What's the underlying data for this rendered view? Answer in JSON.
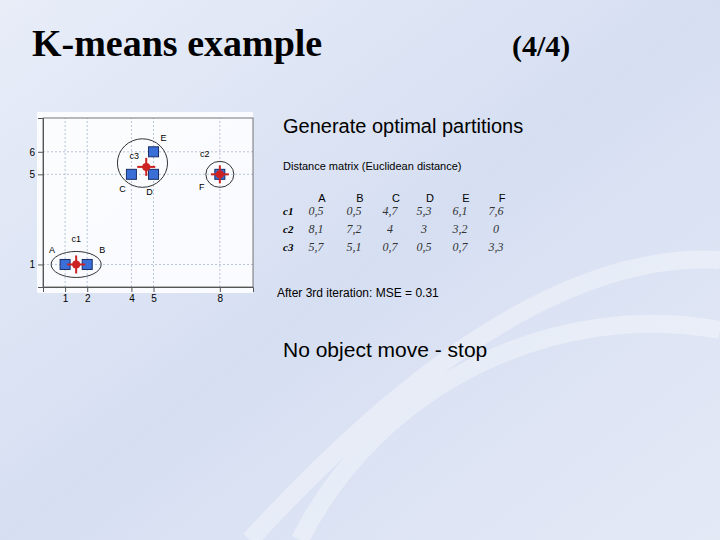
{
  "chart_data": {
    "type": "scatter",
    "series": [
      {
        "labels": [
          "A",
          "B",
          "C",
          "D",
          "E",
          "F"
        ],
        "x": [
          1,
          2,
          4,
          5,
          5,
          8
        ],
        "values": [
          1,
          1,
          5,
          5,
          6,
          5
        ],
        "color": "#3a6fd8",
        "marker": "square"
      },
      {
        "labels": [
          "c1",
          "c2",
          "c3"
        ],
        "x": [
          1.5,
          8,
          4.67
        ],
        "values": [
          1,
          5,
          5.33
        ],
        "color": "#cc2222",
        "marker": "cross"
      }
    ],
    "xlim": [
      0,
      9.5
    ],
    "xticks": [
      1,
      2,
      4,
      5,
      8
    ],
    "ylim": [
      0,
      7.5
    ],
    "yticks": [
      1,
      5,
      6
    ],
    "grid": true
  },
  "slide": {
    "title": "K-means example",
    "page": "(4/4)",
    "heading": "Generate optimal partitions",
    "table_caption": "Distance matrix (Euclidean distance)",
    "note": "After 3rd iteration: MSE = 0.31",
    "conclusion": "No object move - stop"
  },
  "table": {
    "columns": [
      "A",
      "B",
      "C",
      "D",
      "E",
      "F"
    ],
    "rows": [
      {
        "label": "c1",
        "cells": [
          "0,5",
          "0,5",
          "4,7",
          "5,3",
          "6,1",
          "7,6"
        ]
      },
      {
        "label": "c2",
        "cells": [
          "8,1",
          "7,2",
          "4",
          "3",
          "3,2",
          "0"
        ]
      },
      {
        "label": "c3",
        "cells": [
          "5,7",
          "5,1",
          "0,7",
          "0,5",
          "0,7",
          "3,3"
        ]
      }
    ]
  }
}
